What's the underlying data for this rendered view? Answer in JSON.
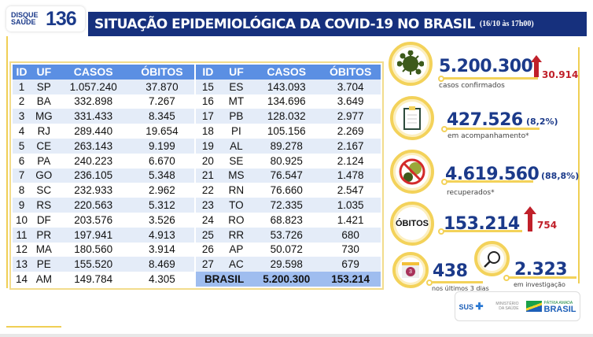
{
  "logo": {
    "line1": "DISQUE",
    "line2": "SAÚDE",
    "number": "136"
  },
  "header": {
    "title": "SITUAÇÃO EPIDEMIOLÓGICA DA COVID-19 NO BRASIL",
    "date": "(16/10 às 17h00)"
  },
  "table": {
    "columns": [
      "ID",
      "UF",
      "CASOS",
      "ÓBITOS"
    ],
    "left": [
      [
        "1",
        "SP",
        "1.057.240",
        "37.870"
      ],
      [
        "2",
        "BA",
        "332.898",
        "7.267"
      ],
      [
        "3",
        "MG",
        "331.433",
        "8.345"
      ],
      [
        "4",
        "RJ",
        "289.440",
        "19.654"
      ],
      [
        "5",
        "CE",
        "263.143",
        "9.199"
      ],
      [
        "6",
        "PA",
        "240.223",
        "6.670"
      ],
      [
        "7",
        "GO",
        "236.105",
        "5.348"
      ],
      [
        "8",
        "SC",
        "232.933",
        "2.962"
      ],
      [
        "9",
        "RS",
        "220.563",
        "5.312"
      ],
      [
        "10",
        "DF",
        "203.576",
        "3.526"
      ],
      [
        "11",
        "PR",
        "197.941",
        "4.913"
      ],
      [
        "12",
        "MA",
        "180.560",
        "3.914"
      ],
      [
        "13",
        "PE",
        "155.520",
        "8.469"
      ],
      [
        "14",
        "AM",
        "149.784",
        "4.305"
      ]
    ],
    "right": [
      [
        "15",
        "ES",
        "143.093",
        "3.704"
      ],
      [
        "16",
        "MT",
        "134.696",
        "3.649"
      ],
      [
        "17",
        "PB",
        "128.032",
        "2.977"
      ],
      [
        "18",
        "PI",
        "105.156",
        "2.269"
      ],
      [
        "19",
        "AL",
        "89.278",
        "2.167"
      ],
      [
        "20",
        "SE",
        "80.925",
        "2.124"
      ],
      [
        "21",
        "MS",
        "76.547",
        "1.478"
      ],
      [
        "22",
        "RN",
        "76.660",
        "2.547"
      ],
      [
        "23",
        "TO",
        "72.335",
        "1.035"
      ],
      [
        "24",
        "RO",
        "68.823",
        "1.421"
      ],
      [
        "25",
        "RR",
        "53.726",
        "680"
      ],
      [
        "26",
        "AP",
        "50.072",
        "730"
      ],
      [
        "27",
        "AC",
        "29.598",
        "679"
      ]
    ],
    "total": {
      "label": "BRASIL",
      "casos": "5.200.300",
      "obitos": "153.214"
    }
  },
  "stats": {
    "confirmed": {
      "value": "5.200.300",
      "increase": "30.914",
      "label": "casos confirmados",
      "icon": "virus-icon"
    },
    "monitoring": {
      "value": "427.526",
      "pct": "(8,2%)",
      "label": "em acompanhamento*",
      "icon": "clipboard-icon"
    },
    "recovered": {
      "value": "4.619.560",
      "pct": "(88,8%)",
      "label": "recuperados*",
      "icon": "no-virus-icon"
    },
    "deaths": {
      "badge": "ÓBITOS",
      "value": "153.214",
      "increase": "754"
    },
    "last3": {
      "value": "438",
      "label": "nos últimos 3 dias",
      "icon_text": "3",
      "icon": "calendar-icon"
    },
    "investigation": {
      "value": "2.323",
      "label": "em investigação",
      "icon": "magnifier-icon"
    }
  },
  "partners": {
    "sus": "SUS",
    "ministerio": "MINISTÉRIO DA SAÚDE",
    "patria": "PÁTRIA AMADA",
    "brasil": "BRASIL"
  },
  "colors": {
    "navy": "#16307d",
    "yellow": "#f3d25a",
    "red": "#c0202a",
    "header_blue": "#5b8fe3"
  }
}
